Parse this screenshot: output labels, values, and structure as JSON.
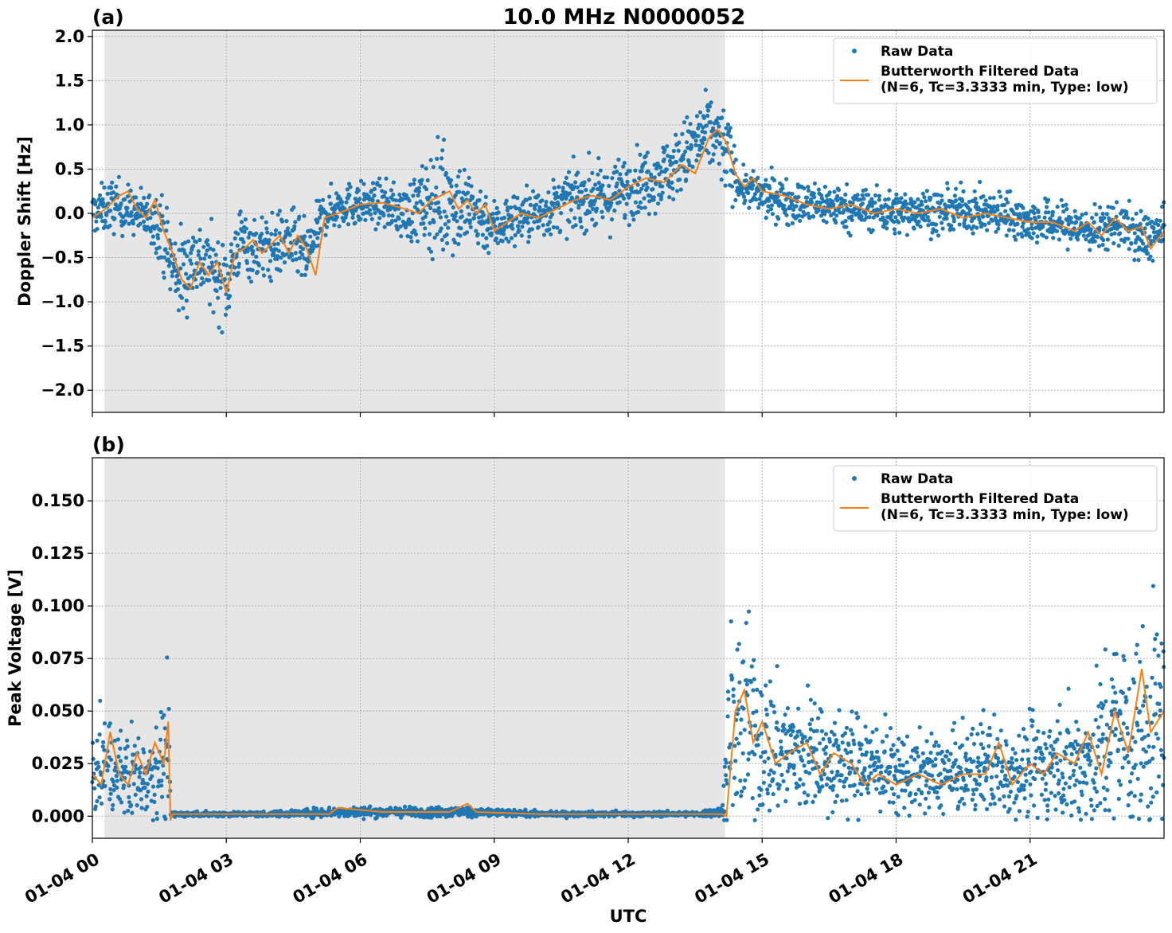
{
  "chart_data": [
    {
      "type": "scatter",
      "panel_label": "(a)",
      "title": "10.0 MHz N0000052",
      "xlabel": "",
      "ylabel": "Doppler Shift [Hz]",
      "x_unit": "hours since 01-04 00 UTC",
      "xlim": [
        0,
        24
      ],
      "ylim": [
        -2.25,
        2.07
      ],
      "yticks": [
        -2.0,
        -1.5,
        -1.0,
        -0.5,
        0.0,
        0.5,
        1.0,
        1.5,
        2.0
      ],
      "ytick_labels": [
        "−2.0",
        "−1.5",
        "−1.0",
        "−0.5",
        "0.0",
        "0.5",
        "1.0",
        "1.5",
        "2.0"
      ],
      "grid": true,
      "legend": "top-right",
      "shaded_region": {
        "x_start": 0.27,
        "x_end": 14.17,
        "color": "#e6e6e6"
      },
      "series": [
        {
          "name": "Raw Data",
          "kind": "scatter",
          "color": "#1f77b4",
          "x": [
            0,
            0.5,
            1.0,
            1.5,
            1.8,
            2.0,
            2.3,
            2.6,
            3.0,
            3.3,
            3.6,
            4.0,
            4.4,
            4.8,
            5.2,
            5.6,
            6.0,
            6.5,
            7.0,
            7.5,
            7.9,
            8.2,
            8.6,
            9.0,
            9.5,
            10.0,
            10.5,
            11.0,
            11.5,
            12.0,
            12.5,
            13.0,
            13.5,
            13.8,
            14.0,
            14.2,
            14.5,
            15.0,
            15.5,
            16.0,
            16.5,
            17.0,
            17.5,
            18.0,
            18.5,
            19.0,
            19.5,
            20.0,
            20.5,
            21.0,
            21.5,
            22.0,
            22.5,
            23.0,
            23.5,
            24.0
          ],
          "y": [
            0.0,
            0.1,
            0.0,
            -0.1,
            -0.6,
            -0.7,
            -0.5,
            -0.6,
            -0.8,
            -0.3,
            -0.4,
            -0.4,
            -0.3,
            -0.5,
            0.0,
            0.1,
            0.1,
            0.1,
            0.0,
            0.1,
            0.2,
            0.1,
            0.0,
            -0.15,
            -0.05,
            0.0,
            0.1,
            0.2,
            0.15,
            0.3,
            0.4,
            0.5,
            0.8,
            0.9,
            0.85,
            0.7,
            0.3,
            0.2,
            0.15,
            0.1,
            0.1,
            0.05,
            0.05,
            0.0,
            0.05,
            0.0,
            0.05,
            0.0,
            0.0,
            -0.1,
            -0.1,
            -0.15,
            -0.2,
            -0.1,
            -0.3,
            -0.2
          ],
          "spread": [
            0.2,
            0.25,
            0.2,
            0.3,
            0.4,
            0.45,
            0.35,
            0.35,
            0.4,
            0.3,
            0.3,
            0.3,
            0.3,
            0.3,
            0.2,
            0.2,
            0.2,
            0.2,
            0.25,
            0.4,
            0.6,
            0.45,
            0.35,
            0.25,
            0.25,
            0.25,
            0.25,
            0.3,
            0.3,
            0.3,
            0.3,
            0.3,
            0.35,
            0.35,
            0.35,
            0.4,
            0.15,
            0.2,
            0.2,
            0.2,
            0.2,
            0.2,
            0.2,
            0.2,
            0.2,
            0.2,
            0.2,
            0.2,
            0.2,
            0.2,
            0.2,
            0.2,
            0.2,
            0.2,
            0.25,
            0.2
          ]
        },
        {
          "name": "Butterworth Filtered Data\n(N=6, Tc=3.3333 min, Type: low)",
          "kind": "line",
          "color": "#ff7f0e",
          "x": [
            0,
            0.3,
            0.6,
            0.8,
            1.0,
            1.2,
            1.4,
            1.6,
            1.8,
            2.0,
            2.2,
            2.4,
            2.6,
            2.8,
            3.0,
            3.2,
            3.4,
            3.6,
            3.8,
            4.0,
            4.2,
            4.4,
            4.6,
            4.8,
            5.0,
            5.2,
            5.5,
            6.0,
            6.5,
            7.0,
            7.3,
            7.6,
            7.8,
            8.0,
            8.2,
            8.4,
            8.6,
            8.8,
            9.0,
            9.3,
            9.6,
            10.0,
            10.4,
            10.8,
            11.2,
            11.6,
            12.0,
            12.4,
            12.8,
            13.2,
            13.5,
            13.8,
            14.0,
            14.2,
            14.4,
            14.6,
            14.8,
            15.0,
            15.5,
            16.0,
            16.5,
            17.0,
            17.5,
            18.0,
            18.5,
            19.0,
            19.5,
            20.0,
            20.5,
            21.0,
            21.5,
            22.0,
            22.3,
            22.6,
            22.9,
            23.2,
            23.5,
            23.7,
            24.0
          ],
          "y": [
            -0.05,
            0.05,
            0.2,
            0.25,
            0.05,
            -0.05,
            0.15,
            -0.2,
            -0.45,
            -0.75,
            -0.85,
            -0.55,
            -0.7,
            -0.55,
            -0.9,
            -0.45,
            -0.4,
            -0.3,
            -0.45,
            -0.35,
            -0.25,
            -0.45,
            -0.25,
            -0.4,
            -0.7,
            -0.05,
            0.0,
            0.1,
            0.12,
            0.05,
            0.0,
            0.15,
            0.2,
            0.25,
            0.05,
            0.15,
            0.0,
            0.1,
            -0.2,
            -0.1,
            0.0,
            -0.05,
            0.05,
            0.15,
            0.2,
            0.15,
            0.3,
            0.4,
            0.35,
            0.55,
            0.45,
            0.85,
            0.95,
            0.8,
            0.45,
            0.3,
            0.4,
            0.25,
            0.2,
            0.1,
            0.05,
            0.1,
            0.0,
            0.05,
            0.0,
            0.05,
            -0.05,
            0.0,
            -0.05,
            -0.1,
            -0.1,
            -0.2,
            -0.1,
            -0.25,
            -0.05,
            -0.2,
            -0.15,
            -0.4,
            -0.2
          ]
        }
      ]
    },
    {
      "type": "scatter",
      "panel_label": "(b)",
      "title": "",
      "xlabel": "UTC",
      "ylabel": "Peak Voltage [V]",
      "x_unit": "hours since 01-04 00 UTC",
      "xlim": [
        0,
        24
      ],
      "ylim": [
        -0.0105,
        0.1705
      ],
      "yticks": [
        0.0,
        0.025,
        0.05,
        0.075,
        0.1,
        0.125,
        0.15
      ],
      "ytick_labels": [
        "0.000",
        "0.025",
        "0.050",
        "0.075",
        "0.100",
        "0.125",
        "0.150"
      ],
      "xticks": [
        0,
        3,
        6,
        9,
        12,
        15,
        18,
        21
      ],
      "xtick_labels": [
        "01-04 00",
        "01-04 03",
        "01-04 06",
        "01-04 09",
        "01-04 12",
        "01-04 15",
        "01-04 18",
        "01-04 21"
      ],
      "grid": true,
      "legend": "top-right",
      "shaded_region": {
        "x_start": 0.27,
        "x_end": 14.17,
        "color": "#e6e6e6"
      },
      "series": [
        {
          "name": "Raw Data",
          "kind": "scatter",
          "color": "#1f77b4",
          "x": [
            0,
            0.3,
            0.6,
            0.9,
            1.2,
            1.5,
            1.7,
            1.75,
            2.5,
            4.0,
            5.3,
            6.5,
            8.0,
            8.5,
            10.0,
            12.0,
            13.5,
            14.1,
            14.3,
            14.6,
            15.0,
            15.5,
            16.0,
            16.5,
            17.0,
            17.5,
            18.0,
            18.5,
            19.0,
            19.5,
            20.0,
            20.5,
            21.0,
            21.5,
            22.0,
            22.5,
            23.0,
            23.5,
            24.0
          ],
          "y": [
            0.02,
            0.025,
            0.02,
            0.02,
            0.02,
            0.025,
            0.03,
            0.001,
            0.001,
            0.001,
            0.002,
            0.002,
            0.002,
            0.002,
            0.001,
            0.001,
            0.001,
            0.002,
            0.04,
            0.045,
            0.035,
            0.03,
            0.03,
            0.025,
            0.025,
            0.025,
            0.02,
            0.02,
            0.02,
            0.02,
            0.025,
            0.022,
            0.022,
            0.025,
            0.025,
            0.03,
            0.04,
            0.035,
            0.05
          ],
          "spread": [
            0.015,
            0.02,
            0.015,
            0.02,
            0.015,
            0.02,
            0.03,
            0.001,
            0.001,
            0.001,
            0.002,
            0.002,
            0.002,
            0.002,
            0.001,
            0.001,
            0.001,
            0.002,
            0.04,
            0.04,
            0.03,
            0.025,
            0.025,
            0.02,
            0.02,
            0.02,
            0.015,
            0.015,
            0.015,
            0.015,
            0.02,
            0.018,
            0.018,
            0.02,
            0.025,
            0.03,
            0.04,
            0.04,
            0.05
          ]
        },
        {
          "name": "Butterworth Filtered Data\n(N=6, Tc=3.3333 min, Type: low)",
          "kind": "line",
          "color": "#ff7f0e",
          "x": [
            0,
            0.2,
            0.4,
            0.6,
            0.8,
            1.0,
            1.2,
            1.4,
            1.6,
            1.7,
            1.75,
            1.8,
            2.5,
            4.0,
            5.3,
            5.5,
            6.5,
            8.0,
            8.4,
            8.6,
            10.0,
            12.0,
            13.5,
            14.1,
            14.2,
            14.4,
            14.6,
            14.8,
            15.0,
            15.3,
            15.6,
            16.0,
            16.3,
            16.6,
            17.0,
            17.3,
            17.6,
            18.0,
            18.5,
            19.0,
            19.5,
            20.0,
            20.3,
            20.6,
            21.0,
            21.3,
            21.6,
            22.0,
            22.3,
            22.6,
            22.9,
            23.2,
            23.5,
            23.7,
            24.0
          ],
          "y": [
            0.02,
            0.015,
            0.04,
            0.02,
            0.015,
            0.03,
            0.02,
            0.035,
            0.025,
            0.045,
            -0.002,
            0.001,
            0.001,
            0.001,
            0.001,
            0.004,
            0.002,
            0.002,
            0.006,
            0.002,
            0.001,
            0.001,
            0.001,
            0.001,
            0.0,
            0.05,
            0.06,
            0.035,
            0.045,
            0.025,
            0.03,
            0.035,
            0.02,
            0.03,
            0.025,
            0.015,
            0.02,
            0.015,
            0.02,
            0.015,
            0.02,
            0.02,
            0.035,
            0.015,
            0.025,
            0.02,
            0.03,
            0.025,
            0.04,
            0.02,
            0.05,
            0.03,
            0.07,
            0.04,
            0.05
          ]
        }
      ]
    }
  ]
}
